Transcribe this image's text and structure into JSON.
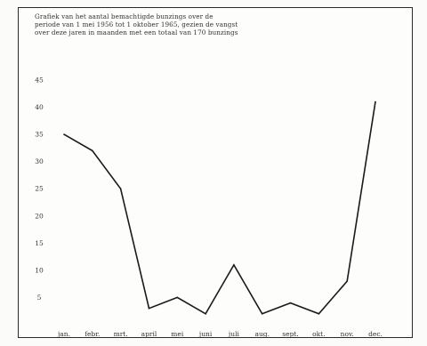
{
  "chart_data": {
    "type": "line",
    "title_lines": [
      "Grafiek van het aantal bemachtigde bunzings over de",
      "periode van 1 mei 1956 tot 1 oktober 1965, gezien de vangst",
      "over deze jaren in maanden met een totaal van 170 bunzings"
    ],
    "categories": [
      "jan.",
      "febr.",
      "mrt.",
      "april",
      "mei",
      "juni",
      "juli",
      "aug.",
      "sept.",
      "okt.",
      "nov.",
      "dec."
    ],
    "values": [
      35,
      32,
      25,
      3,
      5,
      2,
      11,
      2,
      4,
      2,
      8,
      41
    ],
    "ylim": [
      0,
      45
    ],
    "yticks": [
      5,
      10,
      15,
      20,
      25,
      30,
      35,
      40,
      45
    ],
    "ytick_labels": [
      "5",
      "10",
      "15",
      "20",
      "25",
      "30",
      "35",
      "40",
      "45"
    ],
    "grid": false,
    "line_color": "#1a1a1a"
  }
}
